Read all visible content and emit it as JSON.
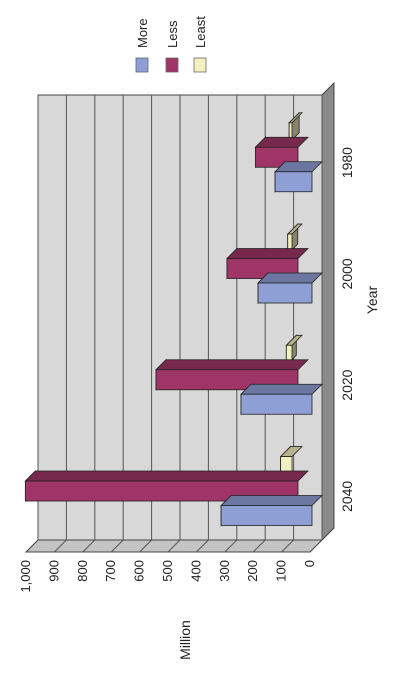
{
  "chart_data": {
    "type": "bar",
    "orientation": "rotated-90",
    "style": "3d",
    "categories": [
      "1980",
      "2000",
      "2020",
      "2040"
    ],
    "series": [
      {
        "name": "More",
        "values": [
          130,
          190,
          250,
          320
        ]
      },
      {
        "name": "Less",
        "values": [
          150,
          250,
          500,
          960
        ]
      },
      {
        "name": "Least",
        "values": [
          10,
          15,
          20,
          40
        ]
      }
    ],
    "xlabel": "Year",
    "ylabel": "Million",
    "ylim": [
      0,
      1000
    ],
    "yticks": [
      "0",
      "100",
      "200",
      "300",
      "400",
      "500",
      "600",
      "700",
      "800",
      "900",
      "1,000"
    ],
    "grid": true,
    "legend_position": "top",
    "colors": {
      "More": "#8e9fd6",
      "Less": "#9e3566",
      "Least": "#f5f0c0",
      "wall": "#d8d8d8",
      "floor": "#8a8a8a"
    }
  }
}
